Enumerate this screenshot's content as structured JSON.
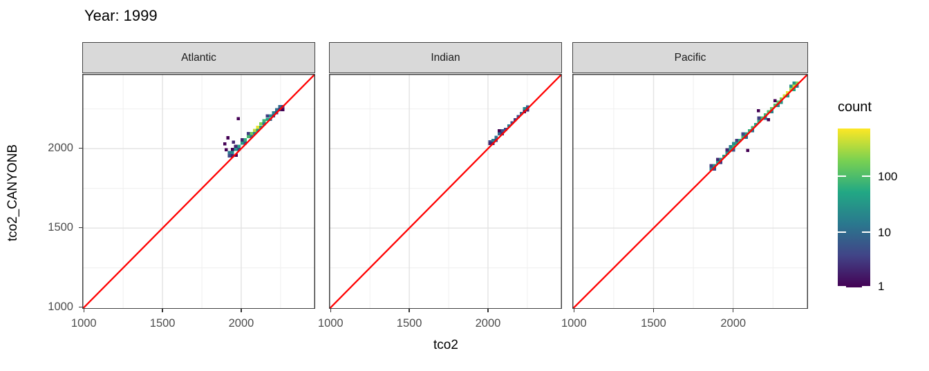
{
  "title": "Year: 1999",
  "axes": {
    "x": {
      "label": "tco2",
      "tick_values": [
        1000,
        1500,
        2000
      ],
      "tick_labels": [
        "1000",
        "1500",
        "2000"
      ],
      "minor_ticks": [
        1250,
        1750,
        2250
      ],
      "range": [
        990,
        2470
      ]
    },
    "y": {
      "label": "tco2_CANYONB",
      "tick_values": [
        1000,
        1500,
        2000
      ],
      "tick_labels": [
        "1000",
        "1500",
        "2000"
      ],
      "minor_ticks": [
        1250,
        1750,
        2250
      ],
      "range": [
        990,
        2470
      ]
    }
  },
  "legend": {
    "title": "count",
    "tick_values": [
      100,
      10,
      1
    ],
    "tick_labels": [
      "100",
      "10",
      "1"
    ],
    "scale": "log10",
    "min": 1,
    "max": 700,
    "gradient": [
      "#440154",
      "#414487",
      "#2a788e",
      "#22a884",
      "#7ad151",
      "#fde725"
    ]
  },
  "colors": {
    "identity_line": "#ff0000",
    "strip_fill": "#d9d9d9",
    "panel_border": "#404040",
    "grid_major": "#e4e4e4",
    "grid_minor": "#f0f0f0",
    "tick_text": "#4d4d4d"
  },
  "chart_data": {
    "type": "heatmap",
    "subtype": "bin2d-faceted-scatter",
    "title": "Year: 1999",
    "xlabel": "tco2",
    "ylabel": "tco2_CANYONB",
    "xlim": [
      990,
      2470
    ],
    "ylim": [
      990,
      2470
    ],
    "binwidth": 20,
    "fill_scale": "viridis, log10 count, 1 to ~700",
    "reference_line": {
      "type": "identity",
      "equation": "y = x",
      "color": "#ff0000"
    },
    "legend_position": "right",
    "grid": true,
    "facets": [
      {
        "label": "Atlantic",
        "bins": [
          [
            1925,
            1955,
            4
          ],
          [
            1925,
            1975,
            12
          ],
          [
            1945,
            1975,
            18
          ],
          [
            1945,
            1955,
            2
          ],
          [
            1945,
            1995,
            1
          ],
          [
            1965,
            1995,
            25
          ],
          [
            1965,
            2015,
            2
          ],
          [
            1985,
            2015,
            35
          ],
          [
            1985,
            1995,
            3
          ],
          [
            2005,
            2035,
            30
          ],
          [
            2005,
            2055,
            2
          ],
          [
            2025,
            2055,
            50
          ],
          [
            2025,
            2035,
            5
          ],
          [
            2045,
            2075,
            70
          ],
          [
            2045,
            2095,
            3
          ],
          [
            2065,
            2095,
            120
          ],
          [
            2065,
            2075,
            10
          ],
          [
            2085,
            2115,
            280
          ],
          [
            2085,
            2095,
            15
          ],
          [
            2105,
            2135,
            400
          ],
          [
            2105,
            2115,
            25
          ],
          [
            2125,
            2155,
            150
          ],
          [
            2125,
            2135,
            30
          ],
          [
            2145,
            2175,
            60
          ],
          [
            2145,
            2155,
            12
          ],
          [
            2165,
            2185,
            40
          ],
          [
            2165,
            2205,
            3
          ],
          [
            2185,
            2205,
            25
          ],
          [
            2185,
            2185,
            8
          ],
          [
            2205,
            2225,
            15
          ],
          [
            2205,
            2205,
            4
          ],
          [
            2225,
            2245,
            10
          ],
          [
            2225,
            2225,
            3
          ],
          [
            2245,
            2265,
            8
          ],
          [
            2245,
            2245,
            2
          ],
          [
            2265,
            2265,
            3
          ],
          [
            2265,
            2245,
            1
          ],
          [
            1982,
            2188,
            1
          ],
          [
            1915,
            2068,
            1
          ],
          [
            1895,
            2030,
            1
          ],
          [
            1950,
            2040,
            2
          ],
          [
            1905,
            1992,
            1
          ],
          [
            1968,
            1958,
            1
          ]
        ]
      },
      {
        "label": "Indian",
        "bins": [
          [
            2012,
            2042,
            4
          ],
          [
            2012,
            2032,
            2
          ],
          [
            2032,
            2052,
            14
          ],
          [
            2032,
            2032,
            2
          ],
          [
            2052,
            2072,
            10
          ],
          [
            2052,
            2052,
            3
          ],
          [
            2072,
            2092,
            8
          ],
          [
            2072,
            2112,
            1
          ],
          [
            2092,
            2112,
            5
          ],
          [
            2092,
            2092,
            2
          ],
          [
            2112,
            2122,
            4
          ],
          [
            2132,
            2142,
            12
          ],
          [
            2152,
            2162,
            5
          ],
          [
            2172,
            2182,
            3
          ],
          [
            2192,
            2202,
            4
          ],
          [
            2212,
            2222,
            8
          ],
          [
            2232,
            2252,
            18
          ],
          [
            2252,
            2262,
            6
          ],
          [
            2252,
            2242,
            2
          ],
          [
            2232,
            2232,
            1
          ]
        ]
      },
      {
        "label": "Pacific",
        "bins": [
          [
            1862,
            1872,
            18
          ],
          [
            1862,
            1892,
            3
          ],
          [
            1882,
            1892,
            22
          ],
          [
            1882,
            1872,
            4
          ],
          [
            1902,
            1912,
            28
          ],
          [
            1902,
            1932,
            2
          ],
          [
            1922,
            1932,
            25
          ],
          [
            1922,
            1912,
            3
          ],
          [
            1942,
            1952,
            35
          ],
          [
            1962,
            1972,
            30
          ],
          [
            1962,
            1992,
            2
          ],
          [
            1982,
            1992,
            45
          ],
          [
            1982,
            2012,
            12
          ],
          [
            2002,
            2012,
            55
          ],
          [
            2002,
            2032,
            18
          ],
          [
            2002,
            1992,
            5
          ],
          [
            2022,
            2032,
            40
          ],
          [
            2022,
            2052,
            3
          ],
          [
            2042,
            2052,
            50
          ],
          [
            2062,
            2072,
            60
          ],
          [
            2062,
            2092,
            4
          ],
          [
            2082,
            2092,
            40
          ],
          [
            2082,
            2072,
            8
          ],
          [
            2102,
            2112,
            50
          ],
          [
            2122,
            2132,
            60
          ],
          [
            2122,
            2112,
            10
          ],
          [
            2142,
            2152,
            40
          ],
          [
            2162,
            2172,
            50
          ],
          [
            2162,
            2192,
            3
          ],
          [
            2182,
            2192,
            80
          ],
          [
            2202,
            2212,
            60
          ],
          [
            2202,
            2192,
            10
          ],
          [
            2222,
            2232,
            80
          ],
          [
            2242,
            2252,
            100
          ],
          [
            2242,
            2232,
            15
          ],
          [
            2262,
            2272,
            80
          ],
          [
            2282,
            2292,
            100
          ],
          [
            2282,
            2272,
            20
          ],
          [
            2302,
            2312,
            150
          ],
          [
            2302,
            2292,
            25
          ],
          [
            2322,
            2332,
            300
          ],
          [
            2342,
            2352,
            400
          ],
          [
            2342,
            2332,
            30
          ],
          [
            2362,
            2372,
            200
          ],
          [
            2362,
            2392,
            20
          ],
          [
            2382,
            2392,
            300
          ],
          [
            2382,
            2372,
            40
          ],
          [
            2402,
            2412,
            150
          ],
          [
            2382,
            2412,
            25
          ],
          [
            2402,
            2392,
            12
          ],
          [
            2158,
            2238,
            1
          ],
          [
            2092,
            1988,
            1
          ],
          [
            2262,
            2302,
            1
          ],
          [
            2222,
            2182,
            1
          ]
        ]
      }
    ]
  }
}
